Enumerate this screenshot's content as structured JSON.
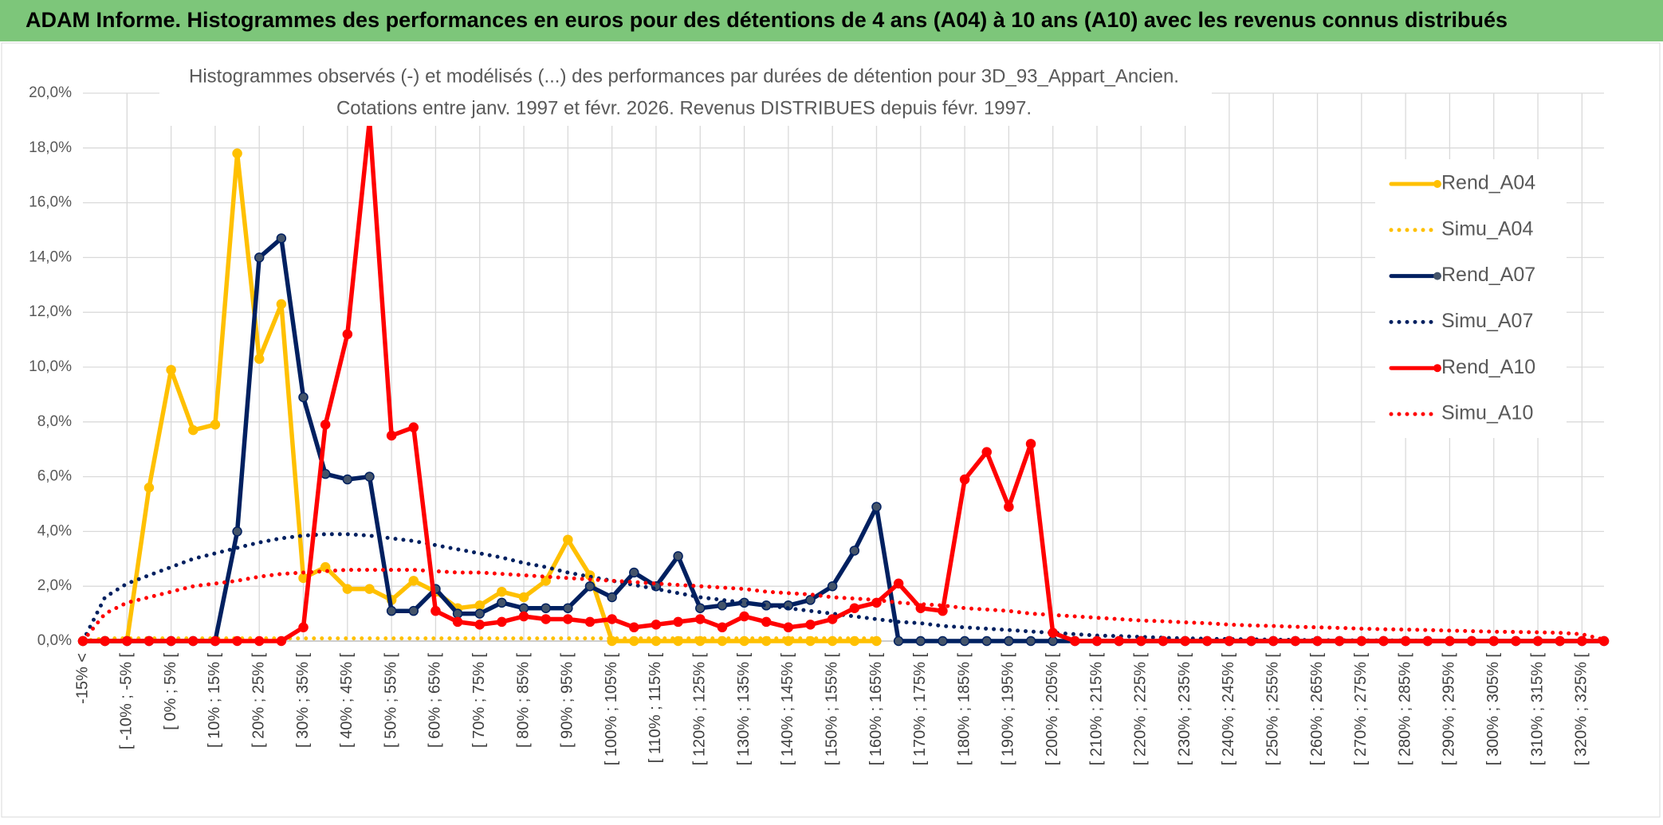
{
  "chart_data": {
    "type": "line",
    "title": "ADAM Informe. Histogrammes des performances en euros pour des détentions de 4 ans (A04) à 10 ans (A10) avec les revenus connus distribués",
    "subtitle": [
      "Histogrammes observés (-) et modélisés (...) des performances par durées de détention pour 3D_93_Appart_Ancien.",
      "Cotations entre janv. 1997 et févr. 2026. Revenus DISTRIBUES depuis févr. 1997."
    ],
    "categories": [
      "-15% <",
      null,
      "[ -10% ; -5% [",
      null,
      "[ 0% ; 5% [",
      null,
      "[ 10% ; 15% [",
      null,
      "[ 20% ; 25% [",
      null,
      "[ 30% ; 35% [",
      null,
      "[ 40% ; 45% [",
      null,
      "[ 50% ; 55% [",
      null,
      "[ 60% ; 65% [",
      null,
      "[ 70% ; 75% [",
      null,
      "[ 80% ; 85% [",
      null,
      "[ 90% ; 95% [",
      null,
      "[ 100% ; 105% [",
      null,
      "[ 110% ; 115% [",
      null,
      "[ 120% ; 125% [",
      null,
      "[ 130% ; 135% [",
      null,
      "[ 140% ; 145% [",
      null,
      "[ 150% ; 155% [",
      null,
      "[ 160% ; 165% [",
      null,
      "[ 170% ; 175% [",
      null,
      "[ 180% ; 185% [",
      null,
      "[ 190% ; 195% [",
      null,
      "[ 200% ; 205% [",
      null,
      "[ 210% ; 215% [",
      null,
      "[ 220% ; 225% [",
      null,
      "[ 230% ; 235% [",
      null,
      "[ 240% ; 245% [",
      null,
      "[ 250% ; 255% [",
      null,
      "[ 260% ; 265% [",
      null,
      "[ 270% ; 275% [",
      null,
      "[ 280% ; 285% [",
      null,
      "[ 290% ; 295% [",
      null,
      "[ 300% ; 305% [",
      null,
      "[ 310% ; 315% [",
      null,
      "[ 320% ; 325% [",
      null
    ],
    "ylim": [
      0,
      20
    ],
    "yticks": [
      {
        "value": 0,
        "label": "0,0%"
      },
      {
        "value": 2,
        "label": "2,0%"
      },
      {
        "value": 4,
        "label": "4,0%"
      },
      {
        "value": 6,
        "label": "6,0%"
      },
      {
        "value": 8,
        "label": "8,0%"
      },
      {
        "value": 10,
        "label": "10,0%"
      },
      {
        "value": 12,
        "label": "12,0%"
      },
      {
        "value": 14,
        "label": "14,0%"
      },
      {
        "value": 16,
        "label": "16,0%"
      },
      {
        "value": 18,
        "label": "18,0%"
      },
      {
        "value": 20,
        "label": "20,0%"
      }
    ],
    "grid": true,
    "legend": "right",
    "series": [
      {
        "name": "Rend_A04",
        "color": "#FFC000",
        "style": "solid",
        "values": [
          0,
          0,
          0,
          5.6,
          9.9,
          7.7,
          7.9,
          17.8,
          10.3,
          12.3,
          2.3,
          2.7,
          1.9,
          1.9,
          1.5,
          2.2,
          1.8,
          1.2,
          1.3,
          1.8,
          1.6,
          2.2,
          3.7,
          2.4,
          0,
          0,
          0,
          0,
          0,
          0,
          0,
          0,
          0,
          0,
          0,
          0,
          0,
          null,
          null,
          null,
          null,
          null,
          null,
          null,
          null,
          null,
          null,
          null,
          null,
          null,
          null,
          null,
          null,
          null,
          null,
          null,
          null,
          null,
          null,
          null,
          null,
          null,
          null,
          null,
          null,
          null,
          null,
          null,
          null,
          null
        ]
      },
      {
        "name": "Simu_A04",
        "color": "#FFC000",
        "style": "dotted",
        "values": [
          0,
          0.1,
          0.1,
          0.1,
          0.1,
          0.1,
          0.1,
          0.1,
          0.1,
          0.1,
          0.1,
          0.1,
          0.1,
          0.1,
          0.1,
          0.1,
          0.1,
          0.1,
          0.1,
          0.1,
          0.1,
          0.1,
          0.1,
          0.1,
          0.1,
          0.1,
          0.1,
          0.1,
          0.1,
          0.1,
          0.1,
          0.1,
          0.1,
          0.1,
          0.1,
          0.1,
          0.1,
          null,
          null,
          null,
          null,
          null,
          null,
          null,
          null,
          null,
          null,
          null,
          null,
          null,
          null,
          null,
          null,
          null,
          null,
          null,
          null,
          null,
          null,
          null,
          null,
          null,
          null,
          null,
          null,
          null,
          null,
          null,
          null,
          null
        ]
      },
      {
        "name": "Rend_A07",
        "color": "#002060",
        "style": "solid",
        "values": [
          0,
          0,
          0,
          0,
          0,
          0,
          0,
          4.0,
          14.0,
          14.7,
          8.9,
          6.1,
          5.9,
          6.0,
          1.1,
          1.1,
          1.9,
          1.0,
          1.0,
          1.4,
          1.2,
          1.2,
          1.2,
          2.0,
          1.6,
          2.5,
          2.0,
          3.1,
          1.2,
          1.3,
          1.4,
          1.3,
          1.3,
          1.5,
          2.0,
          3.3,
          4.9,
          0,
          0,
          0,
          0,
          0,
          0,
          0,
          0,
          0,
          0,
          0,
          0,
          0,
          0,
          0,
          0,
          0,
          0,
          0,
          0,
          0,
          0,
          0,
          0,
          0,
          0,
          0,
          0,
          0,
          0,
          0,
          0,
          0
        ]
      },
      {
        "name": "Simu_A07",
        "color": "#002060",
        "style": "dotted",
        "values": [
          0,
          1.6,
          2.1,
          2.4,
          2.7,
          3.0,
          3.2,
          3.4,
          3.6,
          3.75,
          3.85,
          3.9,
          3.9,
          3.85,
          3.75,
          3.65,
          3.5,
          3.35,
          3.2,
          3.05,
          2.85,
          2.7,
          2.5,
          2.35,
          2.2,
          2.05,
          1.9,
          1.75,
          1.6,
          1.5,
          1.4,
          1.3,
          1.2,
          1.1,
          1.0,
          0.9,
          0.8,
          0.7,
          0.65,
          0.55,
          0.5,
          0.45,
          0.4,
          0.35,
          0.3,
          0.25,
          0.2,
          0.18,
          0.15,
          0.12,
          0.1,
          0.08,
          0.07,
          0.06,
          0.05,
          0.04,
          0.03,
          0.03,
          0.02,
          0.02,
          0.02,
          0.01,
          0.01,
          0.01,
          0.01,
          0,
          0,
          0,
          0,
          0
        ]
      },
      {
        "name": "Rend_A10",
        "color": "#FF0000",
        "style": "solid",
        "values": [
          0,
          0,
          0,
          0,
          0,
          0,
          0,
          0,
          0,
          0,
          0.5,
          7.9,
          11.2,
          19.0,
          7.5,
          7.8,
          1.1,
          0.7,
          0.6,
          0.7,
          0.9,
          0.8,
          0.8,
          0.7,
          0.8,
          0.5,
          0.6,
          0.7,
          0.8,
          0.5,
          0.9,
          0.7,
          0.5,
          0.6,
          0.8,
          1.2,
          1.4,
          2.1,
          1.2,
          1.1,
          5.9,
          6.9,
          4.9,
          7.2,
          0.3,
          0,
          0,
          0,
          0,
          0,
          0,
          0,
          0,
          0,
          0,
          0,
          0,
          0,
          0,
          0,
          0,
          0,
          0,
          0,
          0,
          0,
          0,
          0,
          0,
          0
        ]
      },
      {
        "name": "Simu_A10",
        "color": "#FF0000",
        "style": "dotted",
        "values": [
          0,
          1.0,
          1.4,
          1.6,
          1.8,
          2.0,
          2.1,
          2.2,
          2.35,
          2.45,
          2.5,
          2.55,
          2.6,
          2.6,
          2.6,
          2.6,
          2.55,
          2.5,
          2.5,
          2.45,
          2.4,
          2.35,
          2.3,
          2.25,
          2.2,
          2.15,
          2.1,
          2.05,
          2.0,
          1.95,
          1.9,
          1.8,
          1.75,
          1.7,
          1.6,
          1.55,
          1.5,
          1.4,
          1.35,
          1.3,
          1.2,
          1.15,
          1.1,
          1.0,
          0.95,
          0.9,
          0.85,
          0.8,
          0.75,
          0.72,
          0.68,
          0.65,
          0.6,
          0.57,
          0.55,
          0.52,
          0.5,
          0.48,
          0.45,
          0.43,
          0.42,
          0.4,
          0.38,
          0.36,
          0.34,
          0.33,
          0.32,
          0.3,
          0.25,
          0.05
        ]
      }
    ]
  }
}
